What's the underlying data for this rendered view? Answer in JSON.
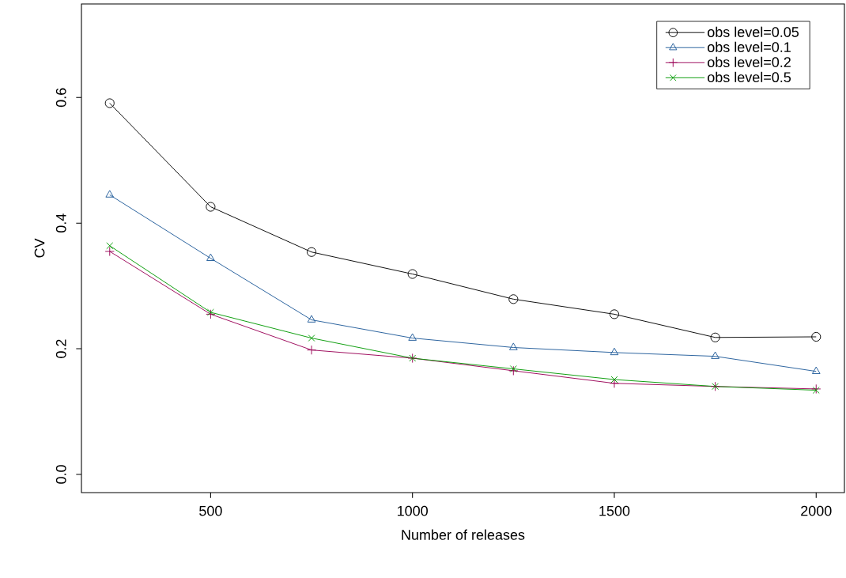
{
  "chart_data": {
    "type": "line",
    "xlabel": "Number of releases",
    "ylabel": "CV",
    "x": [
      250,
      500,
      750,
      1000,
      1250,
      1500,
      1750,
      2000
    ],
    "series": [
      {
        "name": "obs level=0.05",
        "color": "#000000",
        "marker": "circle",
        "values": [
          0.591,
          0.426,
          0.354,
          0.319,
          0.279,
          0.255,
          0.218,
          0.219
        ]
      },
      {
        "name": "obs level=0.1",
        "color": "#1f5a99",
        "marker": "triangle",
        "values": [
          0.445,
          0.344,
          0.246,
          0.217,
          0.202,
          0.194,
          0.188,
          0.164
        ]
      },
      {
        "name": "obs level=0.2",
        "color": "#990055",
        "marker": "plus",
        "values": [
          0.355,
          0.255,
          0.198,
          0.185,
          0.165,
          0.145,
          0.14,
          0.136
        ]
      },
      {
        "name": "obs level=0.5",
        "color": "#009900",
        "marker": "cross",
        "values": [
          0.364,
          0.258,
          0.217,
          0.185,
          0.168,
          0.151,
          0.14,
          0.134
        ]
      }
    ],
    "xlim": [
      180,
      2070
    ],
    "ylim": [
      -0.029,
      0.749
    ],
    "xticks": [
      500,
      1000,
      1500,
      2000
    ],
    "yticks": [
      {
        "value": 0,
        "label": "0.0"
      },
      {
        "value": 0.2,
        "label": "0.2"
      },
      {
        "value": 0.4,
        "label": "0.4"
      },
      {
        "value": 0.6,
        "label": "0.6"
      }
    ],
    "legend": "top right",
    "grid": false,
    "line_style": "solid"
  }
}
